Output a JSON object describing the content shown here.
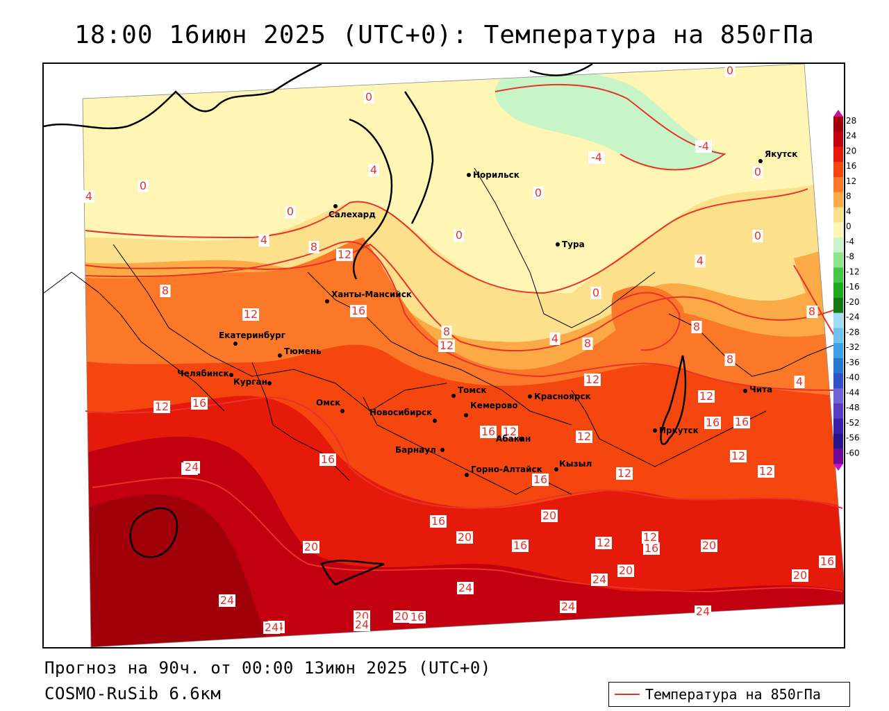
{
  "title": "18:00 16июн 2025 (UTC+0): Температура на 850гПа",
  "forecast_line": "Прогноз на 90ч. от 00:00 13июн 2025 (UTC+0)",
  "model_line": "COSMO-RuSib 6.6км",
  "legend_label": "Температура на 850гПа",
  "colors": {
    "contour": "#e8322a",
    "border": "#000000"
  },
  "colorbar": {
    "ticks": [
      "28",
      "24",
      "20",
      "16",
      "12",
      "8",
      "4",
      "0",
      "-4",
      "-8",
      "-12",
      "-16",
      "-20",
      "-24",
      "-28",
      "-32",
      "-36",
      "-40",
      "-44",
      "-48",
      "-52",
      "-56",
      "-60"
    ],
    "colors": [
      "#a0000a",
      "#c3000f",
      "#e61a0a",
      "#f5460f",
      "#fa7828",
      "#fcaa46",
      "#fde08c",
      "#fff5b4",
      "#c8f5c8",
      "#8ce68c",
      "#46c846",
      "#1eaa1e",
      "#147814",
      "#a0dcf5",
      "#6ec3f0",
      "#3ca0e6",
      "#2878d2",
      "#3250c8",
      "#6e64d2",
      "#5a3cc3",
      "#3c1eaa",
      "#28148c",
      "#6e0a96"
    ]
  },
  "cities": [
    {
      "name": "Норильск"
    },
    {
      "name": "Якутск"
    },
    {
      "name": "Салехард"
    },
    {
      "name": "Тура"
    },
    {
      "name": "Ханты-Мансийск"
    },
    {
      "name": "Екатеринбург"
    },
    {
      "name": "Тюмень"
    },
    {
      "name": "Челябинск"
    },
    {
      "name": "Курган"
    },
    {
      "name": "Омск"
    },
    {
      "name": "Новосибирск"
    },
    {
      "name": "Томск"
    },
    {
      "name": "Кемерово"
    },
    {
      "name": "Красноярск"
    },
    {
      "name": "Барнаул"
    },
    {
      "name": "Абакан"
    },
    {
      "name": "Горно-Алтайск"
    },
    {
      "name": "Кызыл"
    },
    {
      "name": "Иркутск"
    },
    {
      "name": "Чита"
    }
  ],
  "contour_labels": [
    "0",
    "0",
    "0",
    "0",
    "0",
    "0",
    "0",
    "0",
    "0",
    "-4",
    "-4",
    "4",
    "4",
    "4",
    "4",
    "4",
    "4",
    "4",
    "8",
    "8",
    "8",
    "8",
    "8",
    "8",
    "8",
    "12",
    "12",
    "12",
    "12",
    "12",
    "12",
    "12",
    "12",
    "12",
    "12",
    "12",
    "12",
    "12",
    "16",
    "16",
    "16",
    "16",
    "16",
    "16",
    "16",
    "16",
    "16",
    "16",
    "16",
    "16",
    "20",
    "20",
    "20",
    "20",
    "20",
    "20",
    "20",
    "20",
    "20",
    "24",
    "24",
    "24",
    "24",
    "24",
    "24",
    "24",
    "24",
    "24"
  ]
}
